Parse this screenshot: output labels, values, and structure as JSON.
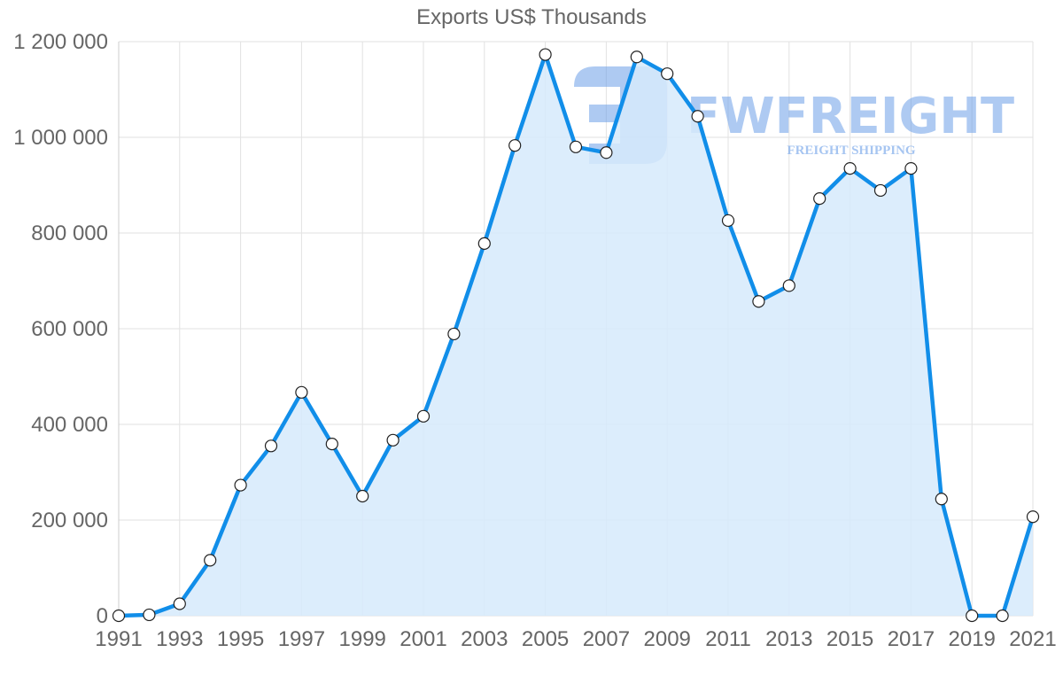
{
  "chart_data": {
    "type": "area",
    "title": "Exports US$ Thousands",
    "xlabel": "",
    "ylabel": "",
    "ylim": [
      0,
      1200000
    ],
    "grid": true,
    "legend": "none",
    "x": [
      1991,
      1992,
      1993,
      1994,
      1995,
      1996,
      1997,
      1998,
      1999,
      2000,
      2001,
      2002,
      2003,
      2004,
      2005,
      2006,
      2007,
      2008,
      2009,
      2010,
      2011,
      2012,
      2013,
      2014,
      2015,
      2016,
      2017,
      2018,
      2019,
      2020,
      2021
    ],
    "x_tick_labels": [
      "1991",
      "1993",
      "1995",
      "1997",
      "1999",
      "2001",
      "2003",
      "2005",
      "2007",
      "2009",
      "2011",
      "2013",
      "2015",
      "2017",
      "2019",
      "2021"
    ],
    "y_tick_labels": [
      "0",
      "200 000",
      "400 000",
      "600 000",
      "800 000",
      "1 000 000",
      "1 200 000"
    ],
    "y_ticks": [
      0,
      200000,
      400000,
      600000,
      800000,
      1000000,
      1200000
    ],
    "series": [
      {
        "name": "Exports US$ Thousands",
        "color": "#118ee9",
        "fill": "#d6eafc",
        "values": [
          0,
          2000,
          25000,
          116000,
          273000,
          355000,
          467000,
          359000,
          250000,
          367000,
          417000,
          589000,
          778000,
          983000,
          1173000,
          980000,
          968000,
          1168000,
          1133000,
          1044000,
          826000,
          657000,
          690000,
          872000,
          935000,
          889000,
          935000,
          244000,
          0,
          0,
          207000
        ]
      }
    ]
  },
  "watermark": {
    "brand": "FWFREIGHT",
    "tagline": "FREIGHT SHIPPING",
    "color": "#6b9fe8"
  }
}
